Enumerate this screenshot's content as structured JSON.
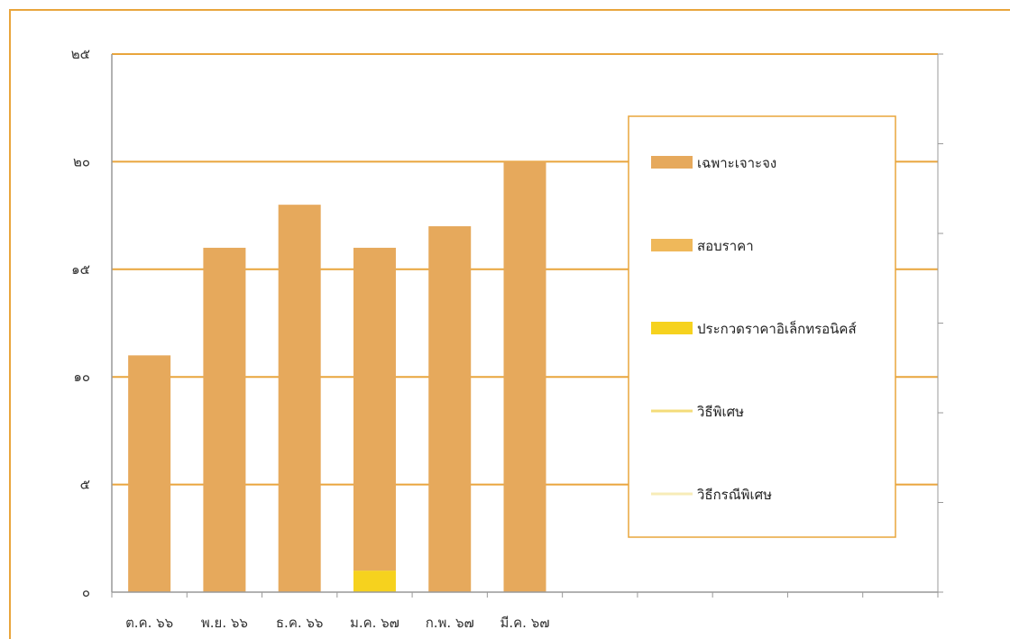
{
  "chart_data": {
    "type": "bar",
    "stacked": true,
    "categories": [
      "ต.ค. ๖๖",
      "พ.ย. ๖๖",
      "ธ.ค. ๖๖",
      "ม.ค. ๖๗",
      "ก.พ. ๖๗",
      "มี.ค. ๖๗"
    ],
    "series": [
      {
        "name": "ประกวดราคาอิเล็กทรอนิคส์",
        "values": [
          0,
          0,
          0,
          1,
          0,
          0
        ],
        "color": "#f6d21e"
      },
      {
        "name": "เฉพาะเจาะจง",
        "values": [
          11,
          16,
          18,
          15,
          17,
          20
        ],
        "color": "#e6a95c"
      },
      {
        "name": "สอบราคา",
        "values": [
          0,
          0,
          0,
          0,
          0,
          0
        ],
        "color": "#efb85a"
      },
      {
        "name": "วิธีพิเศษ",
        "values": [
          0,
          0,
          0,
          0,
          0,
          0
        ],
        "color": "#f4dc7a"
      },
      {
        "name": "วิธีกรณีพิเศษ",
        "values": [
          0,
          0,
          0,
          0,
          0,
          0
        ],
        "color": "#f7ecb8"
      }
    ],
    "legend_order": [
      "เฉพาะเจาะจง",
      "สอบราคา",
      "ประกวดราคาอิเล็กทรอนิคส์",
      "วิธีพิเศษ",
      "วิธีกรณีพิเศษ"
    ],
    "y_ticks": [
      "๐",
      "๕",
      "๑๐",
      "๑๕",
      "๒๐",
      "๒๕"
    ],
    "ylim": [
      0,
      25
    ],
    "grid": true,
    "legend_position": "right",
    "title": "",
    "xlabel": "",
    "ylabel": "",
    "colors": {
      "grid": "#e9a53c",
      "axis": "#999999",
      "frame": "#e9a53c"
    }
  }
}
